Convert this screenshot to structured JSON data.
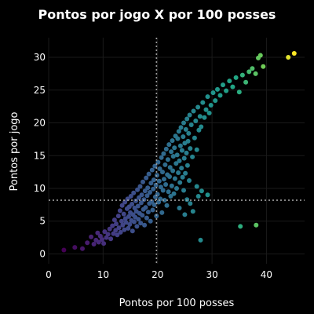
{
  "chart_data": {
    "type": "scatter",
    "title": "Pontos por jogo X por 100 posses",
    "xlabel": "Pontos por 100 posses",
    "ylabel": "Pontos por jogo",
    "xlim": [
      0,
      47
    ],
    "ylim": [
      -1.5,
      33
    ],
    "xticks": [
      0,
      10,
      20,
      30,
      40
    ],
    "yticks": [
      0,
      5,
      10,
      15,
      20,
      25,
      30
    ],
    "grid": true,
    "reference_lines": {
      "x": 19.8,
      "y": 8.2
    },
    "colorscale": "viridis",
    "background_color": "#000000",
    "points": [
      [
        2.8,
        0.6
      ],
      [
        4.8,
        1.0
      ],
      [
        6.2,
        0.8
      ],
      [
        7.1,
        1.7
      ],
      [
        7.8,
        2.6
      ],
      [
        8.3,
        1.5
      ],
      [
        8.7,
        2.1
      ],
      [
        9.0,
        3.2
      ],
      [
        9.2,
        1.8
      ],
      [
        9.5,
        2.7
      ],
      [
        9.8,
        2.2
      ],
      [
        10.1,
        1.6
      ],
      [
        10.3,
        3.4
      ],
      [
        10.6,
        2.5
      ],
      [
        10.9,
        3.0
      ],
      [
        11.2,
        3.8
      ],
      [
        11.4,
        2.3
      ],
      [
        11.7,
        4.3
      ],
      [
        11.9,
        3.1
      ],
      [
        12.1,
        5.2
      ],
      [
        12.3,
        3.6
      ],
      [
        12.4,
        4.6
      ],
      [
        12.6,
        2.9
      ],
      [
        12.8,
        5.8
      ],
      [
        12.9,
        4.0
      ],
      [
        13.1,
        6.6
      ],
      [
        13.2,
        3.3
      ],
      [
        13.4,
        5.0
      ],
      [
        13.5,
        7.4
      ],
      [
        13.6,
        4.4
      ],
      [
        13.8,
        6.1
      ],
      [
        13.9,
        3.7
      ],
      [
        14.0,
        7.9
      ],
      [
        14.1,
        5.4
      ],
      [
        14.2,
        4.8
      ],
      [
        14.4,
        6.9
      ],
      [
        14.5,
        8.4
      ],
      [
        14.6,
        3.9
      ],
      [
        14.7,
        5.7
      ],
      [
        14.8,
        7.2
      ],
      [
        14.9,
        4.5
      ],
      [
        15.0,
        6.3
      ],
      [
        15.1,
        8.8
      ],
      [
        15.2,
        5.1
      ],
      [
        15.3,
        7.6
      ],
      [
        15.4,
        3.5
      ],
      [
        15.5,
        6.0
      ],
      [
        15.6,
        9.3
      ],
      [
        15.7,
        4.9
      ],
      [
        15.8,
        7.0
      ],
      [
        15.9,
        5.6
      ],
      [
        16.0,
        8.1
      ],
      [
        16.1,
        6.5
      ],
      [
        16.2,
        4.2
      ],
      [
        16.3,
        9.8
      ],
      [
        16.4,
        7.3
      ],
      [
        16.5,
        5.3
      ],
      [
        16.6,
        8.6
      ],
      [
        16.7,
        6.2
      ],
      [
        16.8,
        10.3
      ],
      [
        16.9,
        4.7
      ],
      [
        17.0,
        7.8
      ],
      [
        17.1,
        9.0
      ],
      [
        17.2,
        5.9
      ],
      [
        17.3,
        11.0
      ],
      [
        17.4,
        6.8
      ],
      [
        17.5,
        8.3
      ],
      [
        17.6,
        4.4
      ],
      [
        17.7,
        9.6
      ],
      [
        17.8,
        7.1
      ],
      [
        17.9,
        11.6
      ],
      [
        18.0,
        5.5
      ],
      [
        18.1,
        8.9
      ],
      [
        18.2,
        10.1
      ],
      [
        18.3,
        6.4
      ],
      [
        18.4,
        12.2
      ],
      [
        18.5,
        7.7
      ],
      [
        18.6,
        9.4
      ],
      [
        18.7,
        5.0
      ],
      [
        18.8,
        10.8
      ],
      [
        18.9,
        8.0
      ],
      [
        19.0,
        12.8
      ],
      [
        19.1,
        6.7
      ],
      [
        19.2,
        9.9
      ],
      [
        19.3,
        11.3
      ],
      [
        19.4,
        7.5
      ],
      [
        19.5,
        13.4
      ],
      [
        19.6,
        8.7
      ],
      [
        19.7,
        10.5
      ],
      [
        19.8,
        5.8
      ],
      [
        19.9,
        12.0
      ],
      [
        20.0,
        9.1
      ],
      [
        20.1,
        14.0
      ],
      [
        20.2,
        7.9
      ],
      [
        20.3,
        11.1
      ],
      [
        20.4,
        13.0
      ],
      [
        20.5,
        8.4
      ],
      [
        20.6,
        10.2
      ],
      [
        20.7,
        14.7
      ],
      [
        20.8,
        6.3
      ],
      [
        20.9,
        12.5
      ],
      [
        21.0,
        9.7
      ],
      [
        21.1,
        15.3
      ],
      [
        21.2,
        11.4
      ],
      [
        21.3,
        8.2
      ],
      [
        21.4,
        13.6
      ],
      [
        21.5,
        10.6
      ],
      [
        21.6,
        16.0
      ],
      [
        21.7,
        7.4
      ],
      [
        21.8,
        12.1
      ],
      [
        21.9,
        14.4
      ],
      [
        22.0,
        9.5
      ],
      [
        22.1,
        16.7
      ],
      [
        22.2,
        11.8
      ],
      [
        22.3,
        13.2
      ],
      [
        22.4,
        8.8
      ],
      [
        22.5,
        15.6
      ],
      [
        22.6,
        10.4
      ],
      [
        22.7,
        17.3
      ],
      [
        22.8,
        12.7
      ],
      [
        22.9,
        14.9
      ],
      [
        23.0,
        9.2
      ],
      [
        23.1,
        16.2
      ],
      [
        23.2,
        11.5
      ],
      [
        23.3,
        18.0
      ],
      [
        23.4,
        13.8
      ],
      [
        23.5,
        10.0
      ],
      [
        23.6,
        15.1
      ],
      [
        23.7,
        17.6
      ],
      [
        23.8,
        12.4
      ],
      [
        23.9,
        18.7
      ],
      [
        24.0,
        14.2
      ],
      [
        24.1,
        10.9
      ],
      [
        24.2,
        16.5
      ],
      [
        24.3,
        19.3
      ],
      [
        24.4,
        13.1
      ],
      [
        24.5,
        15.8
      ],
      [
        24.6,
        11.7
      ],
      [
        24.7,
        17.9
      ],
      [
        24.8,
        20.0
      ],
      [
        24.9,
        14.6
      ],
      [
        25.0,
        16.9
      ],
      [
        25.1,
        12.3
      ],
      [
        25.2,
        19.0
      ],
      [
        25.3,
        15.4
      ],
      [
        25.4,
        20.6
      ],
      [
        25.5,
        13.5
      ],
      [
        25.6,
        17.2
      ],
      [
        25.7,
        18.4
      ],
      [
        25.8,
        11.2
      ],
      [
        25.9,
        21.2
      ],
      [
        26.0,
        16.1
      ],
      [
        26.2,
        19.7
      ],
      [
        26.4,
        14.8
      ],
      [
        26.6,
        21.8
      ],
      [
        26.8,
        17.7
      ],
      [
        27.0,
        20.3
      ],
      [
        27.2,
        15.9
      ],
      [
        27.4,
        22.4
      ],
      [
        27.6,
        18.9
      ],
      [
        27.8,
        21.0
      ],
      [
        28.0,
        19.4
      ],
      [
        28.3,
        23.1
      ],
      [
        28.6,
        20.8
      ],
      [
        28.9,
        22.0
      ],
      [
        29.2,
        24.0
      ],
      [
        29.5,
        21.5
      ],
      [
        29.8,
        22.7
      ],
      [
        30.2,
        24.6
      ],
      [
        30.6,
        23.4
      ],
      [
        31.0,
        25.1
      ],
      [
        31.5,
        24.2
      ],
      [
        32.0,
        25.8
      ],
      [
        32.6,
        24.9
      ],
      [
        33.2,
        26.4
      ],
      [
        33.8,
        25.5
      ],
      [
        34.4,
        26.9
      ],
      [
        35.0,
        24.7
      ],
      [
        35.6,
        27.3
      ],
      [
        36.2,
        26.2
      ],
      [
        36.8,
        27.8
      ],
      [
        37.4,
        28.3
      ],
      [
        38.0,
        27.5
      ],
      [
        38.5,
        29.9
      ],
      [
        38.9,
        30.3
      ],
      [
        39.4,
        28.6
      ],
      [
        44.0,
        30.0
      ],
      [
        45.1,
        30.6
      ],
      [
        26.5,
        6.5
      ],
      [
        26.0,
        7.7
      ],
      [
        27.5,
        8.8
      ],
      [
        27.2,
        10.3
      ],
      [
        28.1,
        9.6
      ],
      [
        25.4,
        8.3
      ],
      [
        24.8,
        9.7
      ],
      [
        29.2,
        9.0
      ],
      [
        24.0,
        7.0
      ],
      [
        25.0,
        6.0
      ],
      [
        27.9,
        2.1
      ],
      [
        35.2,
        4.2
      ],
      [
        38.1,
        4.4
      ]
    ]
  }
}
